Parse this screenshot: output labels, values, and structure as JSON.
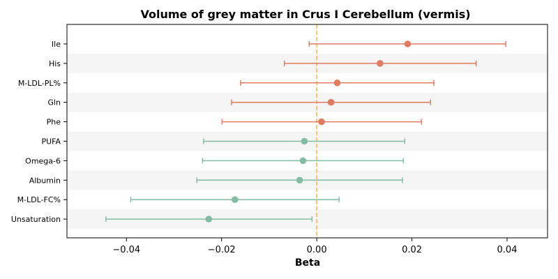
{
  "chart_data": {
    "type": "forest",
    "title": "Volume of grey matter in Crus I Cerebellum (vermis)",
    "xlabel": "Beta",
    "xlim": [
      -0.0525,
      0.0485
    ],
    "xticks": [
      -0.04,
      -0.02,
      0.0,
      0.02,
      0.04
    ],
    "xtick_labels": [
      "−0.04",
      "−0.02",
      "0.00",
      "0.02",
      "0.04"
    ],
    "reference_line": 0.0,
    "grid": false,
    "legend": "none",
    "colors": {
      "positive": "#e07b61",
      "negative": "#84bca3",
      "reference": "#f2c27d",
      "band": "#f5f5f5"
    },
    "items": [
      {
        "label": "Ile",
        "beta": 0.0191,
        "ci_low": -0.0016,
        "ci_high": 0.0397
      },
      {
        "label": "His",
        "beta": 0.0133,
        "ci_low": -0.0068,
        "ci_high": 0.0335
      },
      {
        "label": "M-LDL-PL%",
        "beta": 0.0043,
        "ci_low": -0.016,
        "ci_high": 0.0246
      },
      {
        "label": "Gln",
        "beta": 0.003,
        "ci_low": -0.0179,
        "ci_high": 0.0239
      },
      {
        "label": "Phe",
        "beta": 0.001,
        "ci_low": -0.0199,
        "ci_high": 0.022
      },
      {
        "label": "PUFA",
        "beta": -0.0026,
        "ci_low": -0.0238,
        "ci_high": 0.0185
      },
      {
        "label": "Omega-6",
        "beta": -0.0029,
        "ci_low": -0.024,
        "ci_high": 0.0182
      },
      {
        "label": "Albumin",
        "beta": -0.0036,
        "ci_low": -0.0252,
        "ci_high": 0.018
      },
      {
        "label": "M-LDL-FC%",
        "beta": -0.0172,
        "ci_low": -0.0391,
        "ci_high": 0.0047
      },
      {
        "label": "Unsaturation",
        "beta": -0.0227,
        "ci_low": -0.0443,
        "ci_high": -0.001
      }
    ]
  }
}
